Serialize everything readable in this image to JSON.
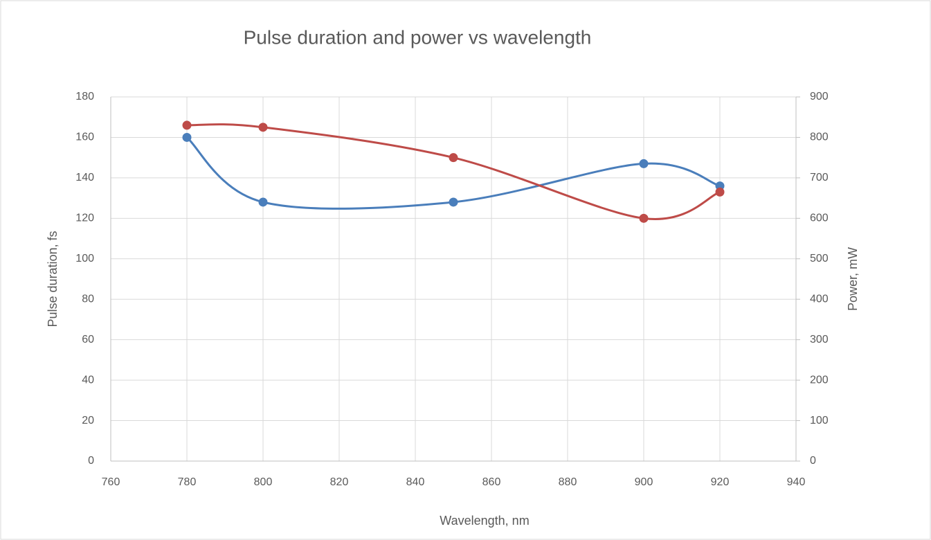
{
  "chart_data": {
    "type": "line",
    "title": "Pulse duration and power vs wavelength",
    "x_label": "Wavelength, nm",
    "y_label": "Pulse duration, fs",
    "y2_label": "Power, mW",
    "x": [
      780,
      800,
      850,
      900,
      920
    ],
    "series": [
      {
        "color": "#4a7ebb",
        "values": [
          160,
          128,
          128,
          147,
          136
        ]
      },
      {
        "color": "#be4b48",
        "axis": "y2",
        "values": [
          830,
          825,
          750,
          600,
          665
        ]
      }
    ],
    "smooth": true,
    "grid": true,
    "xlim": [
      760,
      940
    ],
    "xticks": [
      760,
      780,
      800,
      820,
      840,
      860,
      880,
      900,
      920,
      940
    ],
    "ylim": [
      0,
      180
    ],
    "yticks": [
      0,
      20,
      40,
      60,
      80,
      100,
      120,
      140,
      160,
      180
    ],
    "y2lim": [
      0,
      900
    ],
    "y2ticks": [
      0,
      100,
      200,
      300,
      400,
      500,
      600,
      700,
      800,
      900
    ]
  }
}
